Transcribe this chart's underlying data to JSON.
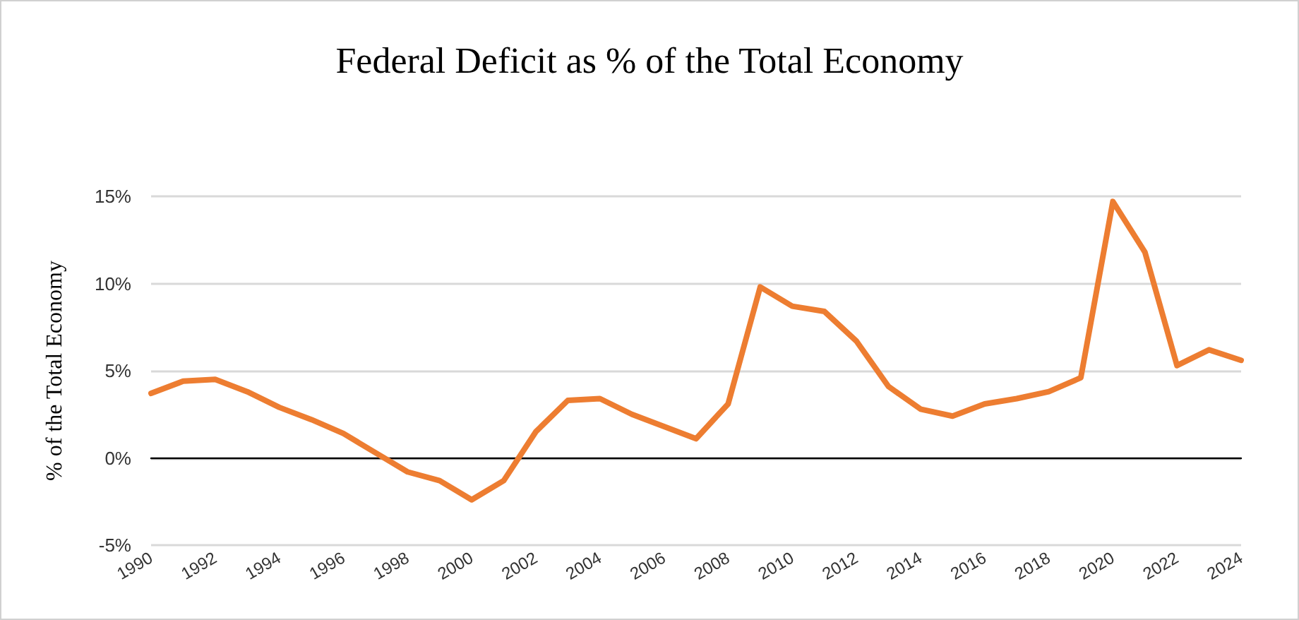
{
  "chart_data": {
    "type": "line",
    "title": "Federal Deficit as % of the Total Economy",
    "ylabel": "% of the Total Economy",
    "categories": [
      "1990",
      null,
      "1992",
      null,
      "1994",
      null,
      "1996",
      null,
      "1998",
      null,
      "2000",
      null,
      "2002",
      null,
      "2004",
      null,
      "2006",
      null,
      "2008",
      null,
      "2010",
      null,
      "2012",
      null,
      "2014",
      null,
      "2016",
      null,
      "2018",
      null,
      "2020",
      null,
      "2022",
      null,
      "2024"
    ],
    "series": [
      {
        "color": "#ed7d31",
        "values": [
          3.7,
          4.4,
          4.5,
          3.8,
          2.9,
          2.2,
          1.4,
          0.3,
          -0.8,
          -1.3,
          -2.4,
          -1.3,
          1.5,
          3.3,
          3.4,
          2.5,
          1.8,
          1.1,
          3.1,
          9.8,
          8.7,
          8.4,
          6.7,
          4.1,
          2.8,
          2.4,
          3.1,
          3.4,
          3.8,
          4.6,
          14.7,
          11.8,
          5.3,
          6.2,
          5.6
        ]
      }
    ],
    "ylim": [
      -5,
      15
    ],
    "yticks": [
      {
        "value": -5,
        "label": "-5%"
      },
      {
        "value": 0,
        "label": "0%"
      },
      {
        "value": 5,
        "label": "5%"
      },
      {
        "value": 10,
        "label": "10%"
      },
      {
        "value": 15,
        "label": "15%"
      }
    ],
    "grid": "y",
    "marker": "none",
    "line_style": "solid"
  }
}
